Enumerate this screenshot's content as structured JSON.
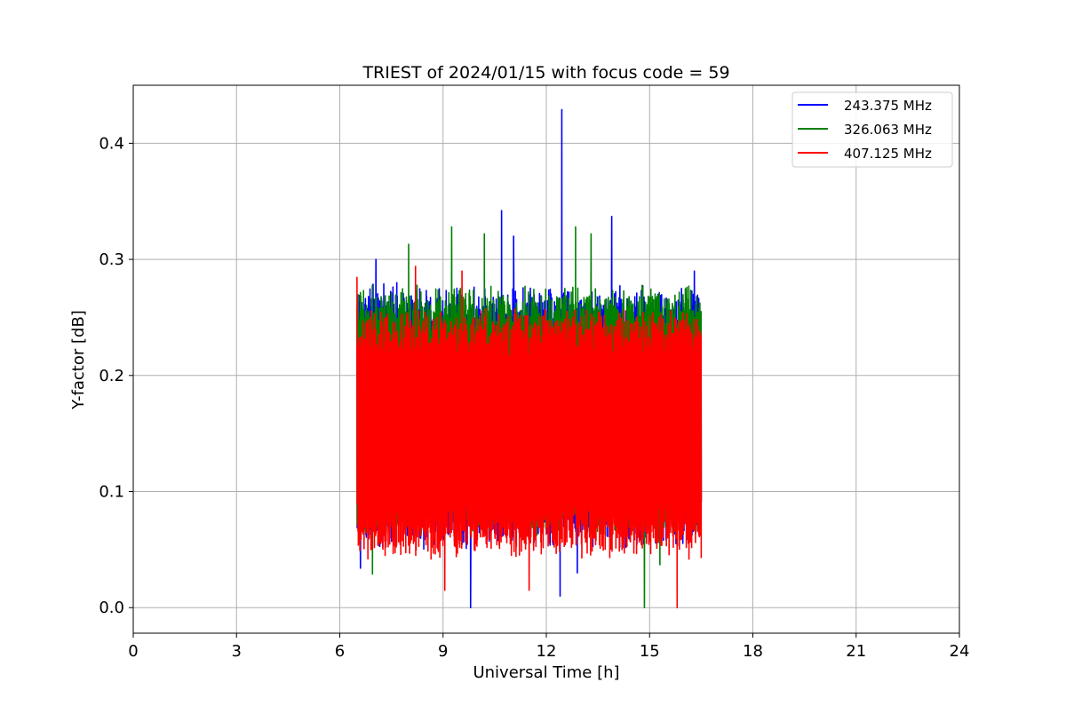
{
  "chart_data": {
    "type": "line",
    "title": "TRIEST of 2024/01/15 with focus code = 59",
    "xlabel": "Universal Time [h]",
    "ylabel": "Y-factor [dB]",
    "xlim": [
      0,
      24
    ],
    "ylim": [
      -0.022,
      0.45
    ],
    "xticks": [
      0,
      3,
      6,
      9,
      12,
      15,
      18,
      21,
      24
    ],
    "xtick_labels": [
      "0",
      "3",
      "6",
      "9",
      "12",
      "15",
      "18",
      "21",
      "24"
    ],
    "yticks": [
      0.0,
      0.1,
      0.2,
      0.3,
      0.4
    ],
    "ytick_labels": [
      "0.0",
      "0.1",
      "0.2",
      "0.3",
      "0.4"
    ],
    "grid": true,
    "legend_position": "top-right",
    "series": [
      {
        "name": "243.375 MHz",
        "color": "#0000ff",
        "x_range": [
          6.5,
          16.5
        ],
        "typical_range": [
          0.06,
          0.27
        ],
        "peaks": [
          {
            "x": 7.05,
            "y": 0.3
          },
          {
            "x": 10.7,
            "y": 0.342
          },
          {
            "x": 11.05,
            "y": 0.32
          },
          {
            "x": 12.45,
            "y": 0.429
          },
          {
            "x": 13.9,
            "y": 0.337
          },
          {
            "x": 16.3,
            "y": 0.29
          }
        ],
        "troughs": [
          {
            "x": 6.6,
            "y": 0.034
          },
          {
            "x": 9.8,
            "y": 0.0
          },
          {
            "x": 12.4,
            "y": 0.01
          },
          {
            "x": 12.9,
            "y": 0.03
          }
        ]
      },
      {
        "name": "326.063 MHz",
        "color": "#008000",
        "x_range": [
          6.5,
          16.5
        ],
        "typical_range": [
          0.07,
          0.27
        ],
        "peaks": [
          {
            "x": 8.0,
            "y": 0.313
          },
          {
            "x": 9.25,
            "y": 0.328
          },
          {
            "x": 10.2,
            "y": 0.322
          },
          {
            "x": 12.85,
            "y": 0.328
          },
          {
            "x": 13.3,
            "y": 0.322
          }
        ],
        "troughs": [
          {
            "x": 6.95,
            "y": 0.029
          },
          {
            "x": 14.85,
            "y": 0.0
          },
          {
            "x": 15.3,
            "y": 0.037
          }
        ]
      },
      {
        "name": "407.125 MHz",
        "color": "#ff0000",
        "x_range": [
          6.5,
          16.5
        ],
        "typical_range": [
          0.05,
          0.25
        ],
        "peaks": [
          {
            "x": 6.5,
            "y": 0.285
          },
          {
            "x": 8.2,
            "y": 0.294
          },
          {
            "x": 9.55,
            "y": 0.29
          }
        ],
        "troughs": [
          {
            "x": 9.05,
            "y": 0.015
          },
          {
            "x": 11.5,
            "y": 0.015
          },
          {
            "x": 15.8,
            "y": 0.0
          }
        ]
      }
    ]
  }
}
